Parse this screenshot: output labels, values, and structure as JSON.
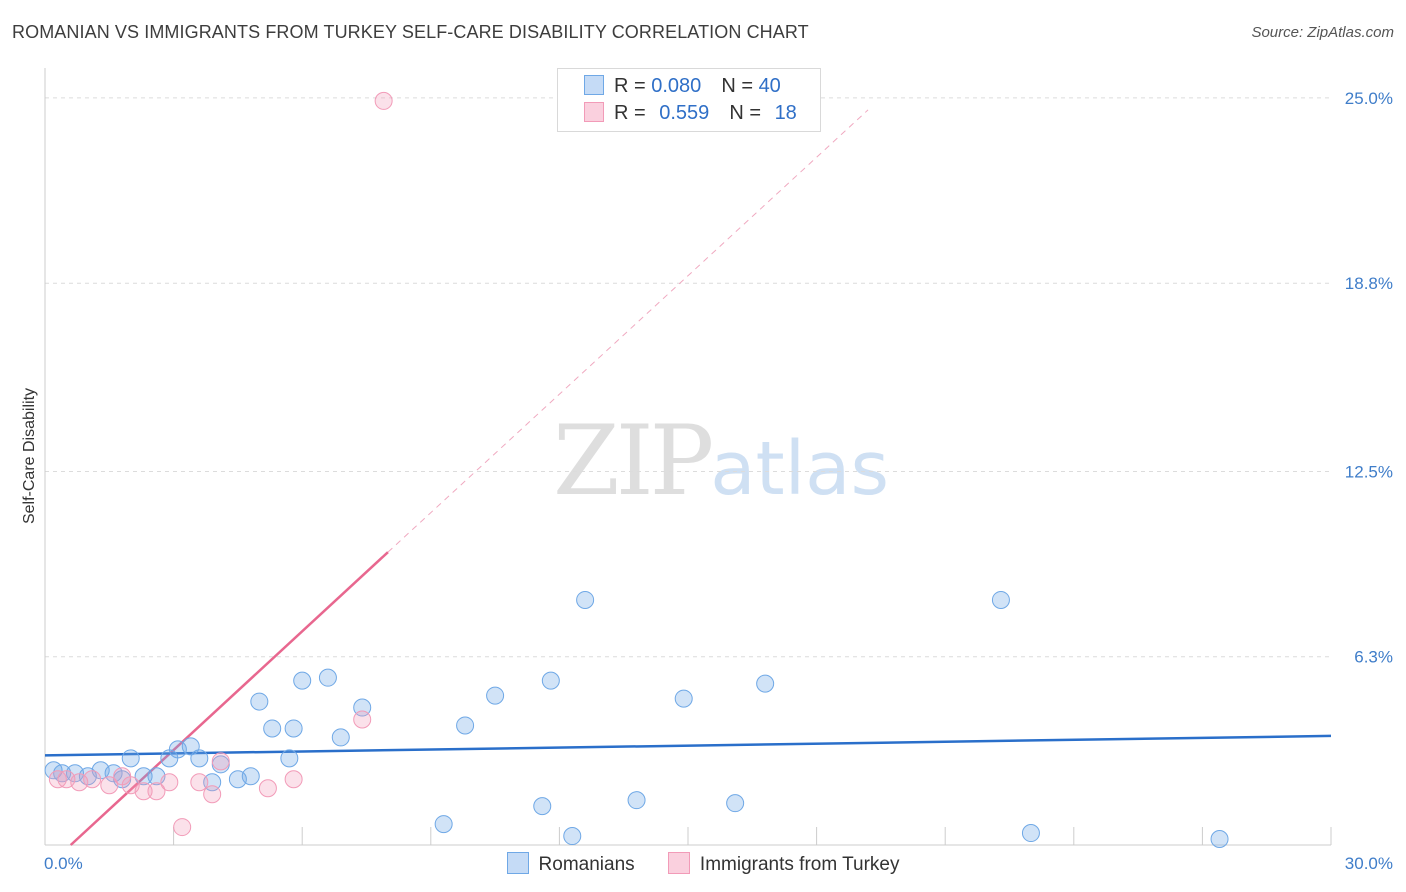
{
  "title": "ROMANIAN VS IMMIGRANTS FROM TURKEY SELF-CARE DISABILITY CORRELATION CHART",
  "source": "Source: ZipAtlas.com",
  "watermark": {
    "zip": "ZIP",
    "atlas": "atlas"
  },
  "legend": {
    "rows": [
      {
        "r_label": "R = ",
        "r_value": "0.080",
        "n_label": "N = ",
        "n_value": "40"
      },
      {
        "r_label": "R = ",
        "r_value": "0.559",
        "n_label": "N = ",
        "n_value": "18"
      }
    ]
  },
  "bottom_legend": {
    "romanians": "Romanians",
    "turkey": "Immigrants from Turkey"
  },
  "chart_data": {
    "type": "scatter",
    "xlabel": "",
    "ylabel": "Self-Care Disability",
    "xlim": [
      0,
      30
    ],
    "ylim": [
      0,
      25.6
    ],
    "y_ticks": [
      6.3,
      12.5,
      18.8,
      25.0
    ],
    "y_tick_labels": [
      "6.3%",
      "12.5%",
      "18.8%",
      "25.0%"
    ],
    "x_tick_labels": [
      "0.0%",
      "30.0%"
    ],
    "grid": "horizontal dashed",
    "legend_position": "top-center",
    "colors": {
      "romanians": "#6fa8e6",
      "turkey": "#f29bb8",
      "romanians_line": "#2a6fca",
      "turkey_line": "#e8678f"
    },
    "series": [
      {
        "name": "Romanians",
        "r": 0.08,
        "n": 40,
        "trend": {
          "x": [
            0,
            30
          ],
          "y": [
            3.0,
            3.65
          ]
        },
        "points": [
          [
            0.2,
            2.5
          ],
          [
            0.4,
            2.4
          ],
          [
            0.7,
            2.4
          ],
          [
            1.0,
            2.3
          ],
          [
            1.3,
            2.5
          ],
          [
            1.6,
            2.4
          ],
          [
            1.8,
            2.2
          ],
          [
            2.0,
            2.9
          ],
          [
            2.3,
            2.3
          ],
          [
            2.6,
            2.3
          ],
          [
            2.9,
            2.9
          ],
          [
            3.1,
            3.2
          ],
          [
            3.4,
            3.3
          ],
          [
            3.6,
            2.9
          ],
          [
            3.9,
            2.1
          ],
          [
            4.1,
            2.7
          ],
          [
            4.5,
            2.2
          ],
          [
            4.8,
            2.3
          ],
          [
            5.0,
            4.8
          ],
          [
            5.3,
            3.9
          ],
          [
            5.7,
            2.9
          ],
          [
            5.8,
            3.9
          ],
          [
            6.0,
            5.5
          ],
          [
            6.6,
            5.6
          ],
          [
            6.9,
            3.6
          ],
          [
            7.4,
            4.6
          ],
          [
            9.3,
            0.7
          ],
          [
            9.8,
            4.0
          ],
          [
            10.5,
            5.0
          ],
          [
            11.6,
            1.3
          ],
          [
            11.8,
            5.5
          ],
          [
            12.3,
            0.3
          ],
          [
            12.6,
            8.2
          ],
          [
            13.8,
            1.5
          ],
          [
            14.9,
            4.9
          ],
          [
            16.1,
            1.4
          ],
          [
            16.8,
            5.4
          ],
          [
            22.3,
            8.2
          ],
          [
            23.0,
            0.4
          ],
          [
            27.4,
            0.2
          ]
        ]
      },
      {
        "name": "Immigrants from Turkey",
        "r": 0.559,
        "n": 18,
        "trend": {
          "x": [
            0.6,
            8.0
          ],
          "y": [
            0.0,
            9.8
          ]
        },
        "trend_extension": {
          "x": [
            8.0,
            19.2
          ],
          "y": [
            9.8,
            24.6
          ]
        },
        "points": [
          [
            0.3,
            2.2
          ],
          [
            0.5,
            2.2
          ],
          [
            0.8,
            2.1
          ],
          [
            1.1,
            2.2
          ],
          [
            1.5,
            2.0
          ],
          [
            1.8,
            2.3
          ],
          [
            2.0,
            2.0
          ],
          [
            2.3,
            1.8
          ],
          [
            2.6,
            1.8
          ],
          [
            2.9,
            2.1
          ],
          [
            3.2,
            0.6
          ],
          [
            3.6,
            2.1
          ],
          [
            3.9,
            1.7
          ],
          [
            4.1,
            2.8
          ],
          [
            5.2,
            1.9
          ],
          [
            5.8,
            2.2
          ],
          [
            7.4,
            4.2
          ],
          [
            7.9,
            24.9
          ]
        ]
      }
    ]
  }
}
